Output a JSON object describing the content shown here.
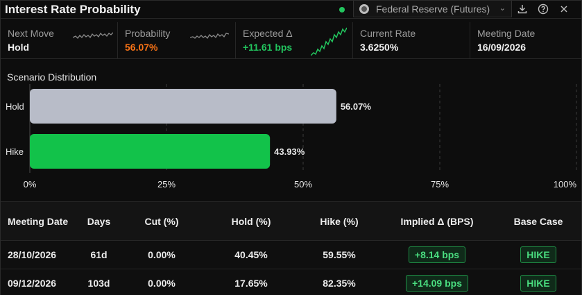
{
  "header": {
    "title": "Interest Rate Probability",
    "source": "Federal Reserve (Futures)",
    "live_color": "#22c55e"
  },
  "stats": [
    {
      "label": "Next Move",
      "value": "Hold",
      "color": "white",
      "sparkline": "gray"
    },
    {
      "label": "Probability",
      "value": "56.07%",
      "color": "orange",
      "sparkline": "gray"
    },
    {
      "label": "Expected Δ",
      "value": "+11.61 bps",
      "color": "green",
      "sparkline": "green"
    },
    {
      "label": "Current Rate",
      "value": "3.6250%",
      "color": "white"
    },
    {
      "label": "Meeting Date",
      "value": "16/09/2026",
      "color": "white"
    }
  ],
  "chart_title": "Scenario Distribution",
  "chart_data": {
    "type": "bar",
    "orientation": "horizontal",
    "categories": [
      "Hold",
      "Hike"
    ],
    "values": [
      56.07,
      43.93
    ],
    "value_labels": [
      "56.07%",
      "43.93%"
    ],
    "colors": [
      "#b8bcc8",
      "#12c24a"
    ],
    "xlim": [
      0,
      100
    ],
    "x_ticks": [
      0,
      25,
      50,
      75,
      100
    ],
    "x_tick_labels": [
      "0%",
      "25%",
      "50%",
      "75%",
      "100%"
    ],
    "grid": "vertical dashed"
  },
  "table": {
    "headers": [
      "Meeting Date",
      "Days",
      "Cut (%)",
      "Hold (%)",
      "Hike (%)",
      "Implied Δ (BPS)",
      "Base Case"
    ],
    "rows": [
      {
        "date": "28/10/2026",
        "days": "61d",
        "cut": "0.00%",
        "hold": "40.45%",
        "hike": "59.55%",
        "implied": "+8.14 bps",
        "base": "HIKE"
      },
      {
        "date": "09/12/2026",
        "days": "103d",
        "cut": "0.00%",
        "hold": "17.65%",
        "hike": "82.35%",
        "implied": "+14.09 bps",
        "base": "HIKE"
      }
    ]
  }
}
